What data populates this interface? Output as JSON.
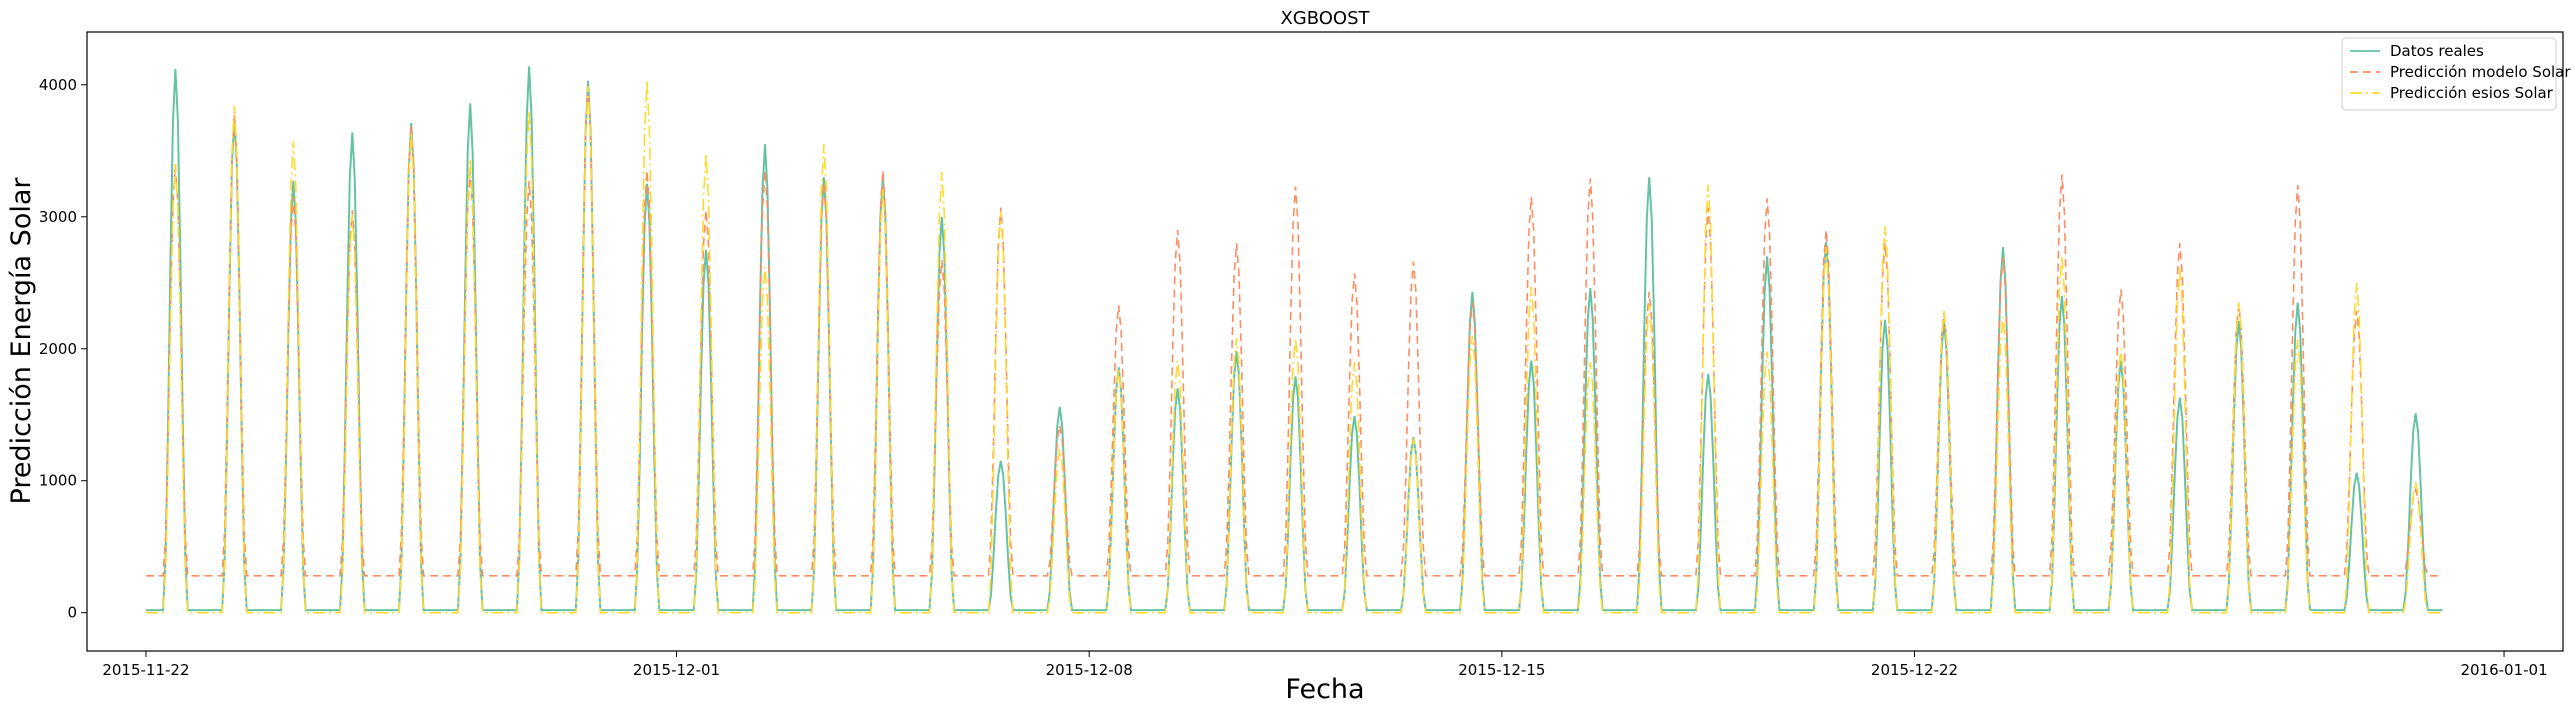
{
  "chart_data": {
    "type": "line",
    "title": "XGBOOST",
    "xlabel": "Fecha",
    "ylabel": "Predicción Energía Solar",
    "x_ticks": [
      "2015-11-22",
      "2015-12-01",
      "2015-12-08",
      "2015-12-15",
      "2015-12-22",
      "2016-01-01"
    ],
    "y_ticks": [
      0,
      1000,
      2000,
      3000,
      4000
    ],
    "xlim": [
      "2015-11-21",
      "2016-01-02"
    ],
    "ylim": [
      -290,
      4400
    ],
    "grid": false,
    "legend_position": "top-right",
    "start_date": "2015-11-22",
    "series": [
      {
        "name": "Datos reales",
        "color": "#66c2a5",
        "style": "solid",
        "daily_peaks": [
          4120,
          3750,
          3270,
          3640,
          3710,
          3860,
          4140,
          4030,
          3250,
          2750,
          3550,
          3300,
          3310,
          3000,
          1150,
          1560,
          1860,
          1700,
          1980,
          1790,
          1490,
          1330,
          2430,
          1910,
          2460,
          3300,
          1810,
          2700,
          2810,
          2220,
          2200,
          2770,
          2400,
          1910,
          1630,
          2210,
          2350,
          1060,
          1510
        ],
        "night_value": 20
      },
      {
        "name": "Predicción modelo Solar",
        "color": "#fc8d62",
        "style": "dashed",
        "daily_peaks": [
          3400,
          3780,
          3150,
          3050,
          3700,
          3350,
          3270,
          3990,
          3350,
          3050,
          3350,
          3260,
          3350,
          2670,
          3070,
          1420,
          2330,
          2900,
          2800,
          3230,
          2570,
          2660,
          2350,
          3150,
          3290,
          2430,
          3070,
          3140,
          2900,
          2800,
          2270,
          2690,
          3320,
          2450,
          2800,
          2340,
          3240,
          2290,
          930
        ],
        "night_value": 280
      },
      {
        "name": "Predicción esios Solar",
        "color": "#ffd92f",
        "style": "dashdot",
        "daily_peaks": [
          3400,
          3840,
          3570,
          3020,
          3640,
          3440,
          3800,
          3990,
          4030,
          3480,
          2620,
          3550,
          3210,
          3340,
          3040,
          1240,
          1850,
          1910,
          2080,
          2080,
          1900,
          1320,
          2100,
          2470,
          1900,
          2340,
          3240,
          1980,
          2770,
          2930,
          2290,
          2240,
          2700,
          2000,
          2610,
          2350,
          2070,
          2500,
          990
        ],
        "night_value": 0
      }
    ]
  }
}
